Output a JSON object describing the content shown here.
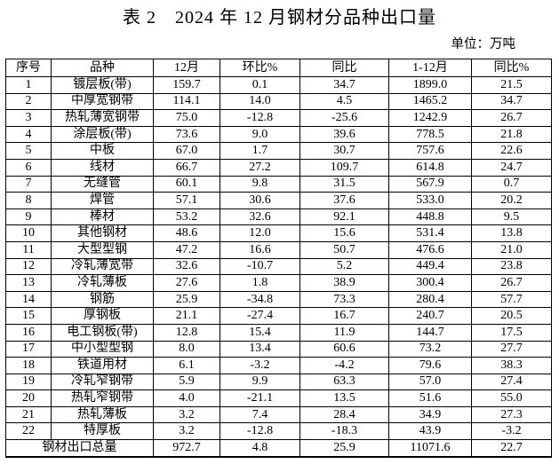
{
  "title": "表 2　2024 年 12 月钢材分品种出口量",
  "unit_label": "单位：万吨",
  "table": {
    "headers": [
      "序号",
      "品种",
      "12月",
      "环比%",
      "同比",
      "1-12月",
      "同比%"
    ],
    "rows": [
      [
        "1",
        "镀层板(带)",
        "159.7",
        "0.1",
        "34.7",
        "1899.0",
        "21.5"
      ],
      [
        "2",
        "中厚宽钢带",
        "114.1",
        "14.0",
        "4.5",
        "1465.2",
        "34.7"
      ],
      [
        "3",
        "热轧薄宽钢带",
        "75.0",
        "-12.8",
        "-25.6",
        "1242.9",
        "26.7"
      ],
      [
        "4",
        "涂层板(带)",
        "73.6",
        "9.0",
        "39.6",
        "778.5",
        "21.8"
      ],
      [
        "5",
        "中板",
        "67.0",
        "1.7",
        "30.7",
        "757.6",
        "22.6"
      ],
      [
        "6",
        "线材",
        "66.7",
        "27.2",
        "109.7",
        "614.8",
        "24.7"
      ],
      [
        "7",
        "无缝管",
        "60.1",
        "9.8",
        "31.5",
        "567.9",
        "0.7"
      ],
      [
        "8",
        "焊管",
        "57.1",
        "30.6",
        "37.6",
        "533.0",
        "20.2"
      ],
      [
        "9",
        "棒材",
        "53.2",
        "32.6",
        "92.1",
        "448.8",
        "9.5"
      ],
      [
        "10",
        "其他钢材",
        "48.6",
        "12.0",
        "15.6",
        "531.4",
        "13.8"
      ],
      [
        "11",
        "大型型钢",
        "47.2",
        "16.6",
        "50.7",
        "476.6",
        "21.0"
      ],
      [
        "12",
        "冷轧薄宽带",
        "32.6",
        "-10.7",
        "5.2",
        "449.4",
        "23.8"
      ],
      [
        "13",
        "冷轧薄板",
        "27.6",
        "1.8",
        "38.9",
        "300.4",
        "26.7"
      ],
      [
        "14",
        "钢筋",
        "25.9",
        "-34.8",
        "73.3",
        "280.4",
        "57.7"
      ],
      [
        "15",
        "厚钢板",
        "21.1",
        "-27.4",
        "16.7",
        "240.7",
        "20.5"
      ],
      [
        "16",
        "电工钢板(带)",
        "12.8",
        "15.4",
        "11.9",
        "144.7",
        "17.5"
      ],
      [
        "17",
        "中小型型钢",
        "8.0",
        "13.4",
        "60.6",
        "73.2",
        "27.7"
      ],
      [
        "18",
        "铁道用材",
        "6.1",
        "-3.2",
        "-4.2",
        "79.6",
        "38.3"
      ],
      [
        "19",
        "冷轧窄钢带",
        "5.9",
        "9.9",
        "63.3",
        "57.0",
        "27.4"
      ],
      [
        "20",
        "热轧窄钢带",
        "4.0",
        "-21.1",
        "13.5",
        "51.6",
        "55.0"
      ],
      [
        "21",
        "热轧薄板",
        "3.2",
        "7.4",
        "28.4",
        "34.9",
        "27.3"
      ],
      [
        "22",
        "特厚板",
        "3.2",
        "-12.8",
        "-18.3",
        "43.9",
        "-3.2"
      ]
    ],
    "total_row": {
      "label": "钢材出口总量",
      "values": [
        "972.7",
        "4.8",
        "25.9",
        "11071.6",
        "22.7"
      ]
    }
  },
  "colors": {
    "text": "#000000",
    "border": "#000000",
    "background": "#ffffff"
  }
}
